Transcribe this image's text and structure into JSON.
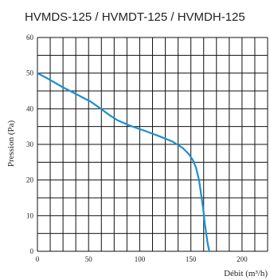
{
  "chart_data": {
    "type": "line",
    "title": "HVMDS-125  / HVMDT-125 / HVMDH-125",
    "xlabel": "Débit (m³/h)",
    "ylabel": "Pression (Pa)",
    "xlim": [
      0,
      225
    ],
    "ylim": [
      0,
      60
    ],
    "x_ticks": [
      "0",
      "50",
      "100",
      "150",
      "200"
    ],
    "y_ticks": [
      "0",
      "10",
      "20",
      "30",
      "40",
      "50",
      "60"
    ],
    "grid": true,
    "series_color": "#1a8fd0",
    "series": [
      {
        "x": [
          0,
          10,
          25,
          40,
          52,
          62,
          70,
          78,
          90,
          105,
          120,
          132,
          142,
          148,
          152,
          155,
          158,
          160,
          162,
          163.5,
          165,
          166.5,
          168
        ],
        "y": [
          50,
          48.5,
          46,
          43.8,
          42,
          40,
          38.3,
          36.8,
          35.3,
          33.8,
          32.2,
          30.8,
          29,
          27.3,
          25.6,
          23.5,
          20,
          16,
          12,
          8,
          5,
          2,
          0
        ]
      }
    ]
  }
}
